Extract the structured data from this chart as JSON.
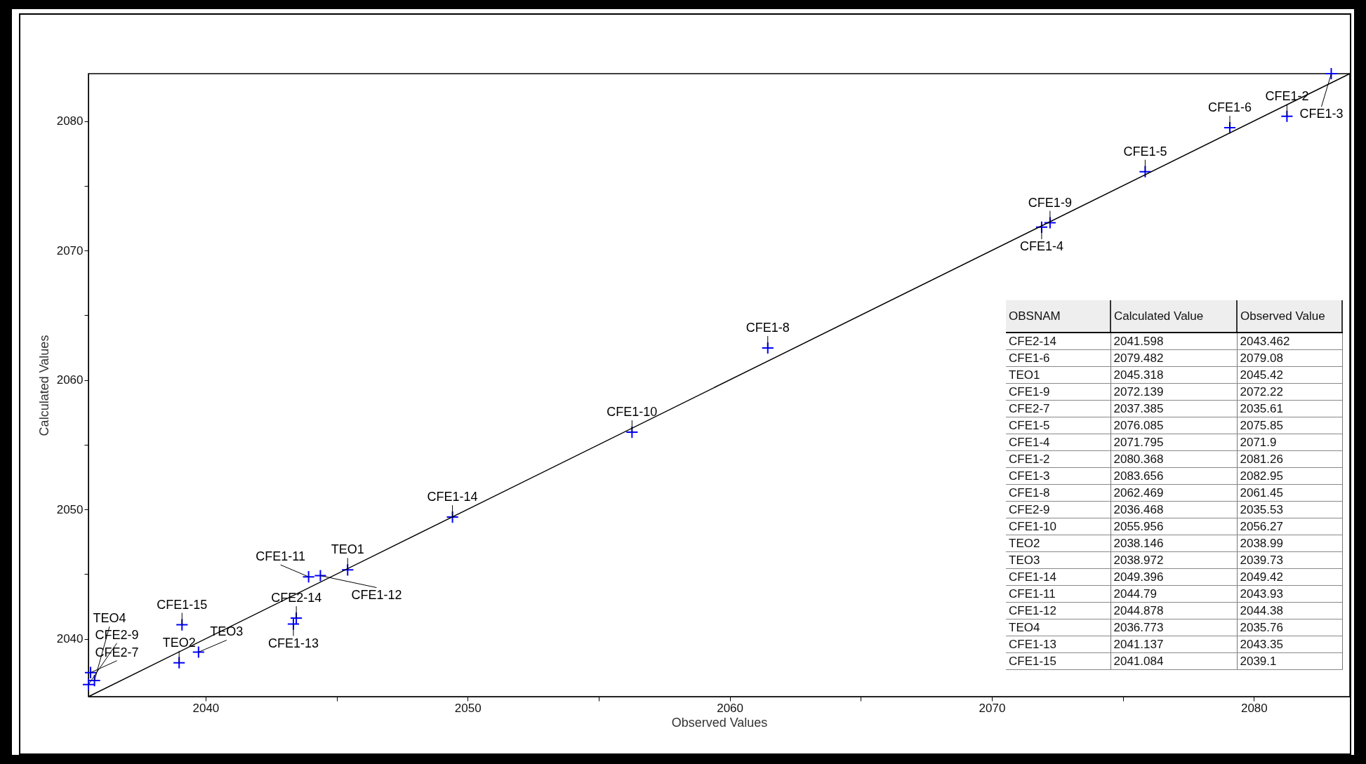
{
  "chart_data": [
    {
      "type": "scatter",
      "xlabel": "Observed Values",
      "ylabel": "Calculated Values",
      "annotations": [
        {
          "text": "CFE2-14",
          "x": 2043.462,
          "y": 2041.598
        },
        {
          "text": "CFE1-6",
          "x": 2079.08,
          "y": 2079.482
        },
        {
          "text": "TEO1",
          "x": 2045.42,
          "y": 2045.318
        },
        {
          "text": "CFE1-9",
          "x": 2072.22,
          "y": 2072.139
        },
        {
          "text": "CFE2-7",
          "x": 2035.61,
          "y": 2037.385
        },
        {
          "text": "CFE1-5",
          "x": 2075.85,
          "y": 2076.085
        },
        {
          "text": "CFE1-4",
          "x": 2071.9,
          "y": 2071.795
        },
        {
          "text": "CFE1-2",
          "x": 2081.26,
          "y": 2080.368
        },
        {
          "text": "CFE1-3",
          "x": 2082.95,
          "y": 2083.656
        },
        {
          "text": "CFE1-8",
          "x": 2061.45,
          "y": 2062.469
        },
        {
          "text": "CFE2-9",
          "x": 2035.53,
          "y": 2036.468
        },
        {
          "text": "CFE1-10",
          "x": 2056.27,
          "y": 2055.956
        },
        {
          "text": "TEO2",
          "x": 2038.99,
          "y": 2038.146
        },
        {
          "text": "TEO3",
          "x": 2039.73,
          "y": 2038.972
        },
        {
          "text": "CFE1-14",
          "x": 2049.42,
          "y": 2049.396
        },
        {
          "text": "CFE1-11",
          "x": 2043.93,
          "y": 2044.79
        },
        {
          "text": "CFE1-12",
          "x": 2044.38,
          "y": 2044.878
        },
        {
          "text": "TEO4",
          "x": 2035.76,
          "y": 2036.773
        },
        {
          "text": "CFE1-13",
          "x": 2043.35,
          "y": 2041.137
        },
        {
          "text": "CFE1-15",
          "x": 2039.1,
          "y": 2041.084
        }
      ],
      "xlim": [
        2035.53,
        2083.66
      ],
      "ylim": [
        2035.53,
        2083.66
      ],
      "xticks": [
        2040,
        {
          "value": 2045,
          "label": null
        },
        2050,
        {
          "value": 2055,
          "label": null
        },
        2060,
        {
          "value": 2065,
          "label": null
        },
        2070,
        {
          "value": 2075,
          "label": null
        },
        2080
      ],
      "yticks": [
        2040,
        {
          "value": 2045,
          "label": null
        },
        2050,
        {
          "value": 2055,
          "label": null
        },
        2060,
        {
          "value": 2065,
          "label": null
        },
        2070,
        {
          "value": 2075,
          "label": null
        },
        2080
      ],
      "series": [
        {
          "type": "scatter",
          "color": "#0000ff",
          "marker": "cross",
          "x": [
            2043.46,
            2079.08,
            2045.42,
            2072.22,
            2035.61,
            2075.85,
            2071.9,
            2081.26,
            2082.95,
            2061.45,
            2035.53,
            2056.27,
            2038.99,
            2039.73,
            2049.42,
            2043.93,
            2044.38,
            2035.76,
            2043.35,
            2039.1
          ],
          "values": [
            2041.6,
            2079.48,
            2045.32,
            2072.14,
            2037.39,
            2076.09,
            2071.8,
            2080.37,
            2083.66,
            2062.47,
            2036.47,
            2055.96,
            2038.15,
            2038.97,
            2049.4,
            2044.79,
            2044.88,
            2036.77,
            2041.14,
            2041.08
          ]
        },
        {
          "type": "line",
          "color": "#000000",
          "line_style": "solid",
          "x": [
            2035.53,
            2083.66
          ],
          "values": [
            2035.53,
            2083.66
          ]
        }
      ]
    },
    {
      "type": "other",
      "xlabel": "OBSNAM",
      "data_labels": true,
      "categories": [
        "CFE2-14",
        "CFE1-6",
        "TEO1",
        "CFE1-9",
        "CFE2-7",
        "CFE1-5",
        "CFE1-4",
        "CFE1-2",
        "CFE1-3",
        "CFE1-8",
        "CFE2-9",
        "CFE1-10",
        "TEO2",
        "TEO3",
        "CFE1-14",
        "CFE1-11",
        "CFE1-12",
        "TEO4",
        "CFE1-13",
        "CFE1-15"
      ],
      "series": [
        {
          "name": "Calculated Value",
          "values": [
            2041.598,
            2079.482,
            2045.318,
            2072.139,
            2037.385,
            2076.085,
            2071.795,
            2080.368,
            2083.656,
            2062.469,
            2036.468,
            2055.956,
            2038.146,
            2038.972,
            2049.396,
            2044.79,
            2044.878,
            2036.773,
            2041.137,
            2041.084
          ]
        },
        {
          "name": "Observed Value",
          "values": [
            2043.462,
            2079.08,
            2045.42,
            2072.22,
            2035.61,
            2075.85,
            2071.9,
            2081.26,
            2082.95,
            2061.45,
            2035.53,
            2056.27,
            2038.99,
            2039.73,
            2049.42,
            2043.93,
            2044.38,
            2035.76,
            2043.35,
            2039.1
          ]
        }
      ]
    }
  ]
}
